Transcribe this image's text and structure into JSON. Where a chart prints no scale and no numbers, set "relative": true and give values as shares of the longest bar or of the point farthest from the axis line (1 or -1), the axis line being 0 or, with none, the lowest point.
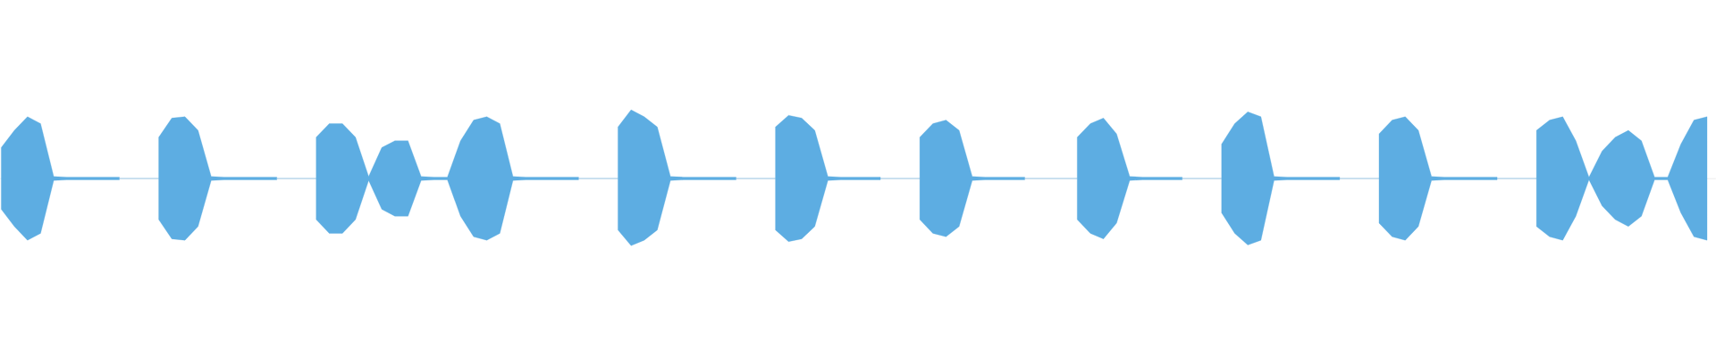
{
  "chart_data": {
    "type": "area",
    "relative": true,
    "categories": [
      null,
      null,
      null,
      null,
      null,
      null,
      null,
      null,
      null,
      null,
      null,
      null,
      null,
      null,
      null,
      null,
      null,
      null,
      null,
      null,
      null,
      null,
      null,
      null,
      null,
      null,
      null,
      null,
      null,
      null,
      null,
      null,
      null,
      null,
      null,
      null,
      null,
      null,
      null,
      null,
      null,
      null,
      null,
      null,
      null,
      null,
      null,
      null,
      null,
      null,
      null,
      null,
      null,
      null,
      null,
      null,
      null,
      null,
      null,
      null,
      null,
      null,
      null,
      null,
      null,
      null,
      null,
      null,
      null,
      null,
      null,
      null,
      null,
      null,
      null,
      null,
      null,
      null,
      null,
      null,
      null,
      null,
      null,
      null,
      null,
      null,
      null,
      null,
      null,
      null,
      null,
      null,
      null,
      null,
      null,
      null,
      null,
      null,
      null,
      null,
      null,
      null,
      null,
      null,
      null,
      null,
      null,
      null,
      null,
      null,
      null,
      null,
      null,
      null,
      null,
      null,
      null,
      null,
      null,
      null,
      null,
      null,
      null,
      null,
      null,
      null,
      null,
      null,
      null,
      null,
      null
    ],
    "series": [
      {
        "color": "#5dade2",
        "values": [
          0.45,
          0.7,
          0.9,
          0.8,
          0.03,
          0.02,
          0.02,
          0.02,
          0.02,
          0.02,
          null,
          null,
          0.6,
          0.88,
          0.9,
          0.7,
          0.03,
          0.02,
          0.02,
          0.02,
          0.02,
          0.02,
          null,
          null,
          0.6,
          0.8,
          0.8,
          0.6,
          0.03,
          0.45,
          0.55,
          0.55,
          0.03,
          0.02,
          0.02,
          0.55,
          0.85,
          0.9,
          0.8,
          0.03,
          0.02,
          0.02,
          0.02,
          0.02,
          0.02,
          null,
          null,
          0.75,
          1.0,
          0.9,
          0.75,
          0.03,
          0.02,
          0.02,
          0.02,
          0.02,
          0.02,
          null,
          null,
          0.75,
          0.92,
          0.88,
          0.7,
          0.03,
          0.02,
          0.02,
          0.02,
          0.02,
          null,
          null,
          0.6,
          0.8,
          0.85,
          0.7,
          0.03,
          0.02,
          0.02,
          0.02,
          0.02,
          null,
          null,
          null,
          0.6,
          0.8,
          0.88,
          0.65,
          0.03,
          0.02,
          0.02,
          0.02,
          0.02,
          null,
          null,
          0.5,
          0.8,
          0.97,
          0.9,
          0.03,
          0.02,
          0.02,
          0.02,
          0.02,
          0.02,
          null,
          null,
          0.65,
          0.85,
          0.9,
          0.7,
          0.03,
          0.02,
          0.02,
          0.02,
          0.02,
          0.02,
          null,
          null,
          0.7,
          0.85,
          0.9,
          0.55,
          0.02,
          0.4,
          0.6,
          0.7,
          0.55,
          0.02,
          0.02,
          0.5,
          0.85,
          0.9
        ]
      },
      {
        "color": "#5dade2",
        "values": [
          -0.45,
          -0.7,
          -0.9,
          -0.8,
          -0.03,
          -0.02,
          -0.02,
          -0.02,
          -0.02,
          -0.02,
          null,
          null,
          -0.6,
          -0.88,
          -0.9,
          -0.7,
          -0.03,
          -0.02,
          -0.02,
          -0.02,
          -0.02,
          -0.02,
          null,
          null,
          -0.6,
          -0.8,
          -0.8,
          -0.6,
          -0.03,
          -0.45,
          -0.55,
          -0.55,
          -0.03,
          -0.02,
          -0.02,
          -0.55,
          -0.85,
          -0.9,
          -0.8,
          -0.03,
          -0.02,
          -0.02,
          -0.02,
          -0.02,
          -0.02,
          null,
          null,
          -0.75,
          -0.98,
          -0.9,
          -0.75,
          -0.03,
          -0.02,
          -0.02,
          -0.02,
          -0.02,
          -0.02,
          null,
          null,
          -0.75,
          -0.92,
          -0.88,
          -0.7,
          -0.03,
          -0.02,
          -0.02,
          -0.02,
          -0.02,
          null,
          null,
          -0.6,
          -0.8,
          -0.85,
          -0.7,
          -0.03,
          -0.02,
          -0.02,
          -0.02,
          -0.02,
          null,
          null,
          null,
          -0.6,
          -0.8,
          -0.88,
          -0.65,
          -0.03,
          -0.02,
          -0.02,
          -0.02,
          -0.02,
          null,
          null,
          -0.5,
          -0.8,
          -0.97,
          -0.9,
          -0.03,
          -0.02,
          -0.02,
          -0.02,
          -0.02,
          -0.02,
          null,
          null,
          -0.65,
          -0.85,
          -0.9,
          -0.7,
          -0.03,
          -0.02,
          -0.02,
          -0.02,
          -0.02,
          -0.02,
          null,
          null,
          -0.7,
          -0.85,
          -0.9,
          -0.55,
          -0.02,
          -0.4,
          -0.6,
          -0.7,
          -0.55,
          -0.02,
          -0.02,
          -0.5,
          -0.85,
          -0.9
        ]
      }
    ]
  }
}
